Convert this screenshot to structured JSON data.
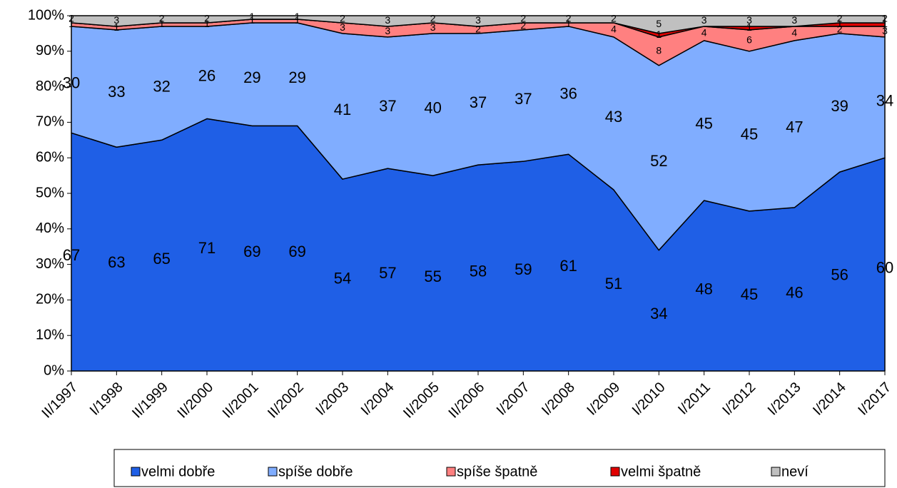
{
  "chart_data": {
    "type": "stacked-area",
    "categories": [
      "II/1997",
      "I/1998",
      "II/1999",
      "II/2000",
      "II/2001",
      "II/2002",
      "I/2003",
      "I/2004",
      "II/2005",
      "II/2006",
      "I/2007",
      "I/2008",
      "I/2009",
      "I/2010",
      "I/2011",
      "I/2012",
      "I/2013",
      "I/2014",
      "I/2017"
    ],
    "series": [
      {
        "name": "velmi dobře",
        "color": "#1f5fe6",
        "values": [
          67,
          63,
          65,
          71,
          69,
          69,
          54,
          57,
          55,
          58,
          59,
          61,
          51,
          34,
          48,
          45,
          46,
          56,
          60
        ]
      },
      {
        "name": "spíše dobře",
        "color": "#80adff",
        "values": [
          30,
          33,
          32,
          26,
          29,
          29,
          41,
          37,
          40,
          37,
          37,
          36,
          43,
          52,
          45,
          45,
          47,
          39,
          34
        ]
      },
      {
        "name": "spíše špatně",
        "color": "#ff8080",
        "values": [
          1,
          1,
          1,
          1,
          1,
          1,
          3,
          3,
          3,
          2,
          2,
          1,
          4,
          8,
          4,
          6,
          4,
          2,
          3
        ]
      },
      {
        "name": "velmi špatně",
        "color": "#e00000",
        "values": [
          0,
          0,
          0,
          0,
          0,
          0,
          0,
          0,
          0,
          0,
          0,
          0,
          0,
          1,
          0,
          1,
          0,
          1,
          1
        ]
      },
      {
        "name": "neví",
        "color": "#c0c0c0",
        "values": [
          2,
          3,
          2,
          2,
          1,
          1,
          2,
          3,
          2,
          3,
          2,
          2,
          2,
          5,
          3,
          3,
          3,
          2,
          2
        ]
      }
    ],
    "ylim": [
      0,
      100
    ],
    "yticks": [
      {
        "value": 0,
        "label": "0%"
      },
      {
        "value": 10,
        "label": "10%"
      },
      {
        "value": 20,
        "label": "20%"
      },
      {
        "value": 30,
        "label": "30%"
      },
      {
        "value": 40,
        "label": "40%"
      },
      {
        "value": 50,
        "label": "50%"
      },
      {
        "value": 60,
        "label": "60%"
      },
      {
        "value": 70,
        "label": "70%"
      },
      {
        "value": 80,
        "label": "80%"
      },
      {
        "value": 90,
        "label": "90%"
      },
      {
        "value": 100,
        "label": "100%"
      }
    ],
    "legend": "bottom"
  }
}
